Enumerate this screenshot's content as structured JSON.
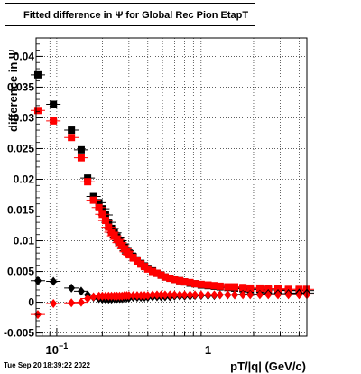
{
  "chart_data": {
    "type": "scatter",
    "title": "Fitted difference in  Ψ  for Global Rec Pion EtapT",
    "xlabel": "pT/|q| (GeV/c)",
    "ylabel": "difference in Ψ",
    "xscale": "log",
    "xlim": [
      0.073,
      4.5
    ],
    "ylim": [
      -0.0055,
      0.043
    ],
    "grid": true,
    "x_tick_labels": [
      {
        "value": 0.1,
        "base": "10",
        "exp": "−1"
      },
      {
        "value": 1,
        "base": "1",
        "exp": ""
      }
    ],
    "y_ticks": [
      -0.005,
      0,
      0.005,
      0.01,
      0.015,
      0.02,
      0.025,
      0.03,
      0.035,
      0.04
    ],
    "y_tick_labels": [
      "-0.005",
      "0",
      "0.005",
      "0.01",
      "0.015",
      "0.02",
      "0.025",
      "0.03",
      "0.035",
      "0.04"
    ],
    "series": [
      {
        "marker": "square",
        "color": "#000000",
        "x": [
          0.075,
          0.095,
          0.125,
          0.145,
          0.16,
          0.175,
          0.19,
          0.2,
          0.21,
          0.22,
          0.23,
          0.24,
          0.25,
          0.26,
          0.27,
          0.28,
          0.29,
          0.3,
          0.32,
          0.34,
          0.36,
          0.38,
          0.4,
          0.43,
          0.46,
          0.49,
          0.52,
          0.56,
          0.6,
          0.65,
          0.7,
          0.76,
          0.82,
          0.9,
          1.0,
          1.1,
          1.2,
          1.35,
          1.5,
          1.7,
          1.9,
          2.2,
          2.5,
          2.9,
          3.4,
          4.0,
          4.5
        ],
        "y": [
          0.037,
          0.0322,
          0.028,
          0.0248,
          0.0202,
          0.0172,
          0.0162,
          0.0152,
          0.0142,
          0.013,
          0.012,
          0.0113,
          0.0106,
          0.01,
          0.0095,
          0.0089,
          0.0084,
          0.008,
          0.0074,
          0.0068,
          0.0063,
          0.0059,
          0.0055,
          0.0051,
          0.0047,
          0.0044,
          0.0041,
          0.0039,
          0.0037,
          0.0035,
          0.0033,
          0.0031,
          0.003,
          0.0028,
          0.0027,
          0.0026,
          0.0025,
          0.0024,
          0.0023,
          0.0022,
          0.0021,
          0.0021,
          0.002,
          0.002,
          0.0019,
          0.0019,
          0.0019
        ]
      },
      {
        "marker": "square",
        "color": "#ff0000",
        "x": [
          0.075,
          0.095,
          0.125,
          0.145,
          0.16,
          0.175,
          0.19,
          0.2,
          0.21,
          0.22,
          0.23,
          0.24,
          0.25,
          0.26,
          0.27,
          0.28,
          0.29,
          0.3,
          0.32,
          0.34,
          0.36,
          0.38,
          0.4,
          0.43,
          0.46,
          0.49,
          0.52,
          0.56,
          0.6,
          0.65,
          0.7,
          0.76,
          0.82,
          0.9,
          1.0,
          1.1,
          1.2,
          1.35,
          1.5,
          1.7,
          1.9,
          2.2,
          2.5,
          2.9,
          3.4,
          4.0,
          4.5
        ],
        "y": [
          0.0312,
          0.0295,
          0.0268,
          0.0235,
          0.0196,
          0.0166,
          0.0154,
          0.0143,
          0.0133,
          0.0122,
          0.0114,
          0.0108,
          0.0102,
          0.0097,
          0.0092,
          0.0087,
          0.0082,
          0.0078,
          0.0072,
          0.0067,
          0.0062,
          0.0058,
          0.0054,
          0.005,
          0.0047,
          0.0044,
          0.0041,
          0.0039,
          0.0037,
          0.0035,
          0.0033,
          0.0032,
          0.003,
          0.0029,
          0.0028,
          0.0027,
          0.0026,
          0.0025,
          0.0025,
          0.0024,
          0.0023,
          0.0023,
          0.0022,
          0.0022,
          0.0021,
          0.0021,
          0.0021
        ]
      },
      {
        "marker": "diamond",
        "color": "#000000",
        "x": [
          0.075,
          0.095,
          0.125,
          0.145,
          0.16,
          0.175,
          0.19,
          0.2,
          0.21,
          0.22,
          0.23,
          0.24,
          0.25,
          0.26,
          0.27,
          0.28,
          0.29,
          0.3,
          0.32,
          0.34,
          0.36,
          0.38,
          0.4,
          0.43,
          0.46,
          0.49,
          0.52,
          0.56,
          0.6,
          0.65,
          0.7,
          0.76,
          0.82,
          0.9,
          1.0,
          1.1,
          1.2,
          1.35,
          1.5,
          1.7,
          1.9,
          2.2,
          2.5,
          2.9,
          3.4,
          4.0,
          4.5
        ],
        "y": [
          0.0035,
          0.0034,
          0.0023,
          0.0018,
          0.0012,
          0.0008,
          0.0006,
          0.0005,
          0.0005,
          0.0005,
          0.0005,
          0.0006,
          0.0006,
          0.0006,
          0.0006,
          0.0007,
          0.0007,
          0.0007,
          0.0008,
          0.0008,
          0.0008,
          0.0008,
          0.0008,
          0.0009,
          0.0009,
          0.0009,
          0.0009,
          0.0009,
          0.001,
          0.001,
          0.001,
          0.001,
          0.0011,
          0.0011,
          0.0011,
          0.0011,
          0.0012,
          0.0012,
          0.0012,
          0.0013,
          0.0013,
          0.0013,
          0.0014,
          0.0014,
          0.0014,
          0.0015,
          0.0015
        ]
      },
      {
        "marker": "diamond",
        "color": "#ff0000",
        "x": [
          0.075,
          0.095,
          0.125,
          0.145,
          0.16,
          0.175,
          0.19,
          0.2,
          0.21,
          0.22,
          0.23,
          0.24,
          0.25,
          0.26,
          0.27,
          0.28,
          0.29,
          0.3,
          0.32,
          0.34,
          0.36,
          0.38,
          0.4,
          0.43,
          0.46,
          0.49,
          0.52,
          0.56,
          0.6,
          0.65,
          0.7,
          0.76,
          0.82,
          0.9,
          1.0,
          1.1,
          1.2,
          1.35,
          1.5,
          1.7,
          1.9,
          2.2,
          2.5,
          2.9,
          3.4,
          4.0,
          4.5
        ],
        "y": [
          -0.002,
          -0.0002,
          -0.0001,
          0.0,
          0.0006,
          0.0009,
          0.001,
          0.001,
          0.001,
          0.001,
          0.001,
          0.001,
          0.001,
          0.001,
          0.001,
          0.0011,
          0.0011,
          0.0011,
          0.0011,
          0.0011,
          0.0011,
          0.0011,
          0.0011,
          0.0012,
          0.0012,
          0.0012,
          0.0012,
          0.0012,
          0.0012,
          0.0012,
          0.0012,
          0.0012,
          0.0012,
          0.0012,
          0.0012,
          0.0012,
          0.0012,
          0.0012,
          0.0012,
          0.0012,
          0.0012,
          0.0012,
          0.0012,
          0.0012,
          0.0012,
          0.0012,
          0.0012
        ]
      }
    ]
  },
  "footer": {
    "timestamp": "Tue Sep 20 18:39:22 2022"
  }
}
